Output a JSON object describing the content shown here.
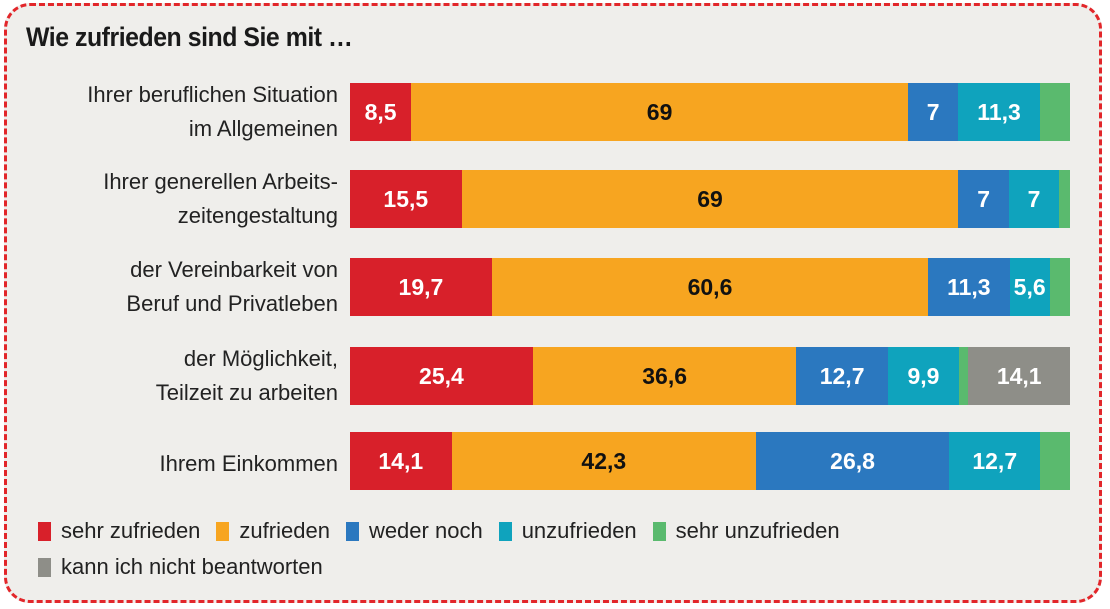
{
  "chart_data": {
    "type": "bar",
    "orientation": "horizontal",
    "stacked": true,
    "title": "Wie zufrieden sind Sie mit …",
    "xlabel": "",
    "ylabel": "",
    "xlim": [
      0,
      100
    ],
    "grid": false,
    "legend_position": "bottom",
    "categories": [
      "Ihrer beruflichen Situation\nim Allgemeinen",
      "Ihrer generellen Arbeits-\nzeitengestaltung",
      "der Vereinbarkeit von\nBeruf und Privatleben",
      "der Möglichkeit,\nTeilzeit zu arbeiten",
      "Ihrem Einkommen"
    ],
    "series": [
      {
        "name": "sehr zufrieden",
        "color": "#d8202a",
        "text_color": "#ffffff",
        "values": [
          8.5,
          15.5,
          19.7,
          25.4,
          14.1
        ],
        "labels": [
          "8,5",
          "15,5",
          "19,7",
          "25,4",
          "14,1"
        ]
      },
      {
        "name": "zufrieden",
        "color": "#f7a520",
        "text_color": "#111111",
        "values": [
          69,
          69,
          60.6,
          36.6,
          42.3
        ],
        "labels": [
          "69",
          "69",
          "60,6",
          "36,6",
          "42,3"
        ]
      },
      {
        "name": "weder noch",
        "color": "#2b78bf",
        "text_color": "#ffffff",
        "values": [
          7,
          7,
          11.3,
          12.7,
          26.8
        ],
        "labels": [
          "7",
          "7",
          "11,3",
          "12,7",
          "26,8"
        ]
      },
      {
        "name": "unzufrieden",
        "color": "#0fa3bd",
        "text_color": "#ffffff",
        "values": [
          11.3,
          7,
          5.6,
          9.9,
          12.7
        ],
        "labels": [
          "11,3",
          "7",
          "5,6",
          "9,9",
          "12,7"
        ]
      },
      {
        "name": "sehr unzufrieden",
        "color": "#5aba6e",
        "text_color": "#ffffff",
        "values": [
          4.2,
          1.5,
          2.8,
          1.3,
          4.1
        ],
        "labels": [
          "",
          "",
          "",
          "",
          ""
        ]
      },
      {
        "name": "kann ich nicht beantworten",
        "color": "#8e8e88",
        "text_color": "#ffffff",
        "values": [
          0,
          0,
          0,
          14.1,
          0
        ],
        "labels": [
          "",
          "",
          "",
          "14,1",
          ""
        ]
      }
    ]
  }
}
